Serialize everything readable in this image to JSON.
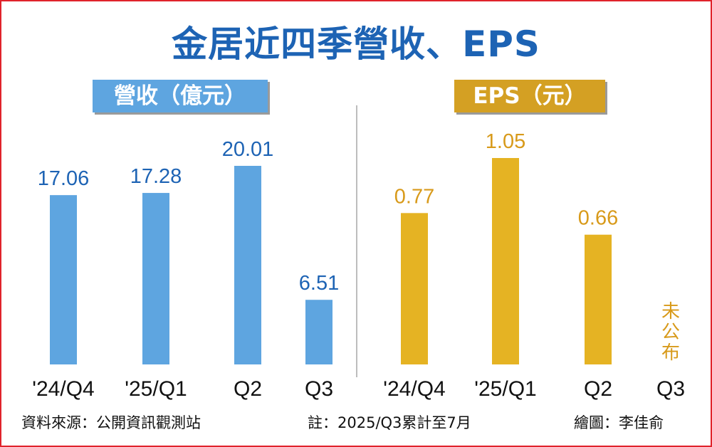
{
  "title": "金居近四季營收、EPS",
  "colors": {
    "revenue_bar": "#5ea5e0",
    "eps_bar": "#e5b323",
    "revenue_text": "#1d63b4",
    "eps_text": "#d89a1a",
    "frame": "#e0232b"
  },
  "chart_data": [
    {
      "type": "bar",
      "title": "營收（億元）",
      "categories": [
        "'24/Q4",
        "'25/Q1",
        "Q2",
        "Q3"
      ],
      "values": [
        17.06,
        17.28,
        20.01,
        6.51
      ],
      "ylim": [
        0,
        20.01
      ]
    },
    {
      "type": "bar",
      "title": "EPS（元）",
      "categories": [
        "'24/Q4",
        "'25/Q1",
        "Q2",
        "Q3"
      ],
      "values": [
        0.77,
        1.05,
        0.66,
        null
      ],
      "annotation": "未公布",
      "ylim": [
        0,
        1.05
      ]
    }
  ],
  "footer": {
    "source": "資料來源：公開資訊觀測站",
    "note": "註：2025/Q3累計至7月",
    "credit": "繪圖：李佳俞"
  }
}
